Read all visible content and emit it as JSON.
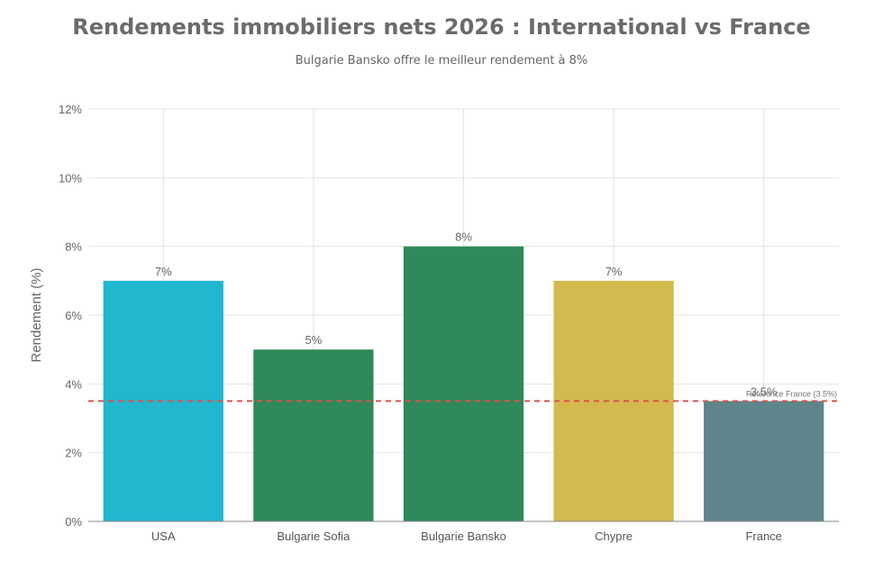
{
  "chart_data": {
    "type": "bar",
    "title": "Rendements immobiliers nets 2026 : International vs France",
    "subtitle": "Bulgarie Bansko offre le meilleur rendement à 8%",
    "xlabel": "",
    "ylabel": "Rendement (%)",
    "ylim": [
      0,
      12
    ],
    "yticks": [
      "0%",
      "2%",
      "4%",
      "6%",
      "8%",
      "10%",
      "12%"
    ],
    "categories": [
      "USA",
      "Bulgarie Sofia",
      "Bulgarie Bansko",
      "Chypre",
      "France"
    ],
    "values": [
      7,
      5,
      8,
      7,
      3.5
    ],
    "data_labels": [
      "7%",
      "5%",
      "8%",
      "7%",
      "3.5%"
    ],
    "colors": [
      "#21b7cf",
      "#2e8a58",
      "#2e8a58",
      "#d4b94e",
      "#5e858b"
    ],
    "reference_line": {
      "value": 3.5,
      "label": "Référence France (3.5%)",
      "color": "#d9534f",
      "style": "dashed"
    },
    "grid": true,
    "legend": "none"
  }
}
